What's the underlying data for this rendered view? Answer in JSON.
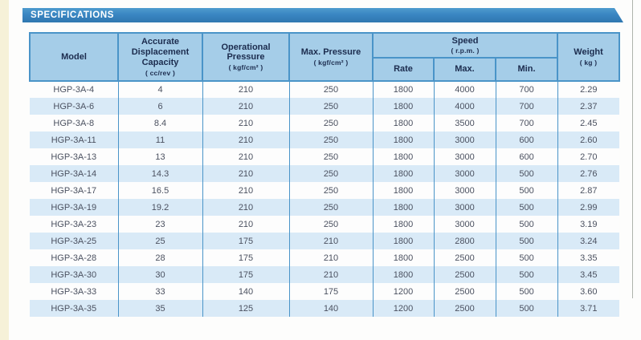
{
  "page": {
    "banner_title": "SPECIFICATIONS"
  },
  "colors": {
    "banner_blue": "#3a86c2",
    "header_bg": "#a5cde8",
    "border_blue": "#4a94c8",
    "alt_row_bg": "#d9eaf7",
    "header_text": "#1c2c4e",
    "body_text": "#4b5160",
    "left_strip": "#f6f1d8"
  },
  "table": {
    "header": {
      "model": {
        "label": "Model"
      },
      "capacity": {
        "label": "Accurate Displacement Capacity",
        "unit": "( cc/rev )"
      },
      "operational_pressure": {
        "label": "Operational Pressure",
        "unit": "( kgf/cm² )"
      },
      "max_pressure": {
        "label": "Max. Pressure",
        "unit": "( kgf/cm² )"
      },
      "speed": {
        "label": "Speed",
        "unit": "( r.p.m. )"
      },
      "speed_rate": {
        "label": "Rate"
      },
      "speed_max": {
        "label": "Max."
      },
      "speed_min": {
        "label": "Min."
      },
      "weight": {
        "label": "Weight",
        "unit": "( kg )"
      }
    },
    "rows": [
      [
        "HGP-3A-4",
        "4",
        "210",
        "250",
        "1800",
        "4000",
        "700",
        "2.29"
      ],
      [
        "HGP-3A-6",
        "6",
        "210",
        "250",
        "1800",
        "4000",
        "700",
        "2.37"
      ],
      [
        "HGP-3A-8",
        "8.4",
        "210",
        "250",
        "1800",
        "3500",
        "700",
        "2.45"
      ],
      [
        "HGP-3A-11",
        "11",
        "210",
        "250",
        "1800",
        "3000",
        "600",
        "2.60"
      ],
      [
        "HGP-3A-13",
        "13",
        "210",
        "250",
        "1800",
        "3000",
        "600",
        "2.70"
      ],
      [
        "HGP-3A-14",
        "14.3",
        "210",
        "250",
        "1800",
        "3000",
        "500",
        "2.76"
      ],
      [
        "HGP-3A-17",
        "16.5",
        "210",
        "250",
        "1800",
        "3000",
        "500",
        "2.87"
      ],
      [
        "HGP-3A-19",
        "19.2",
        "210",
        "250",
        "1800",
        "3000",
        "500",
        "2.99"
      ],
      [
        "HGP-3A-23",
        "23",
        "210",
        "250",
        "1800",
        "3000",
        "500",
        "3.19"
      ],
      [
        "HGP-3A-25",
        "25",
        "175",
        "210",
        "1800",
        "2800",
        "500",
        "3.24"
      ],
      [
        "HGP-3A-28",
        "28",
        "175",
        "210",
        "1800",
        "2500",
        "500",
        "3.35"
      ],
      [
        "HGP-3A-30",
        "30",
        "175",
        "210",
        "1800",
        "2500",
        "500",
        "3.45"
      ],
      [
        "HGP-3A-33",
        "33",
        "140",
        "175",
        "1200",
        "2500",
        "500",
        "3.60"
      ],
      [
        "HGP-3A-35",
        "35",
        "125",
        "140",
        "1200",
        "2500",
        "500",
        "3.71"
      ]
    ]
  }
}
